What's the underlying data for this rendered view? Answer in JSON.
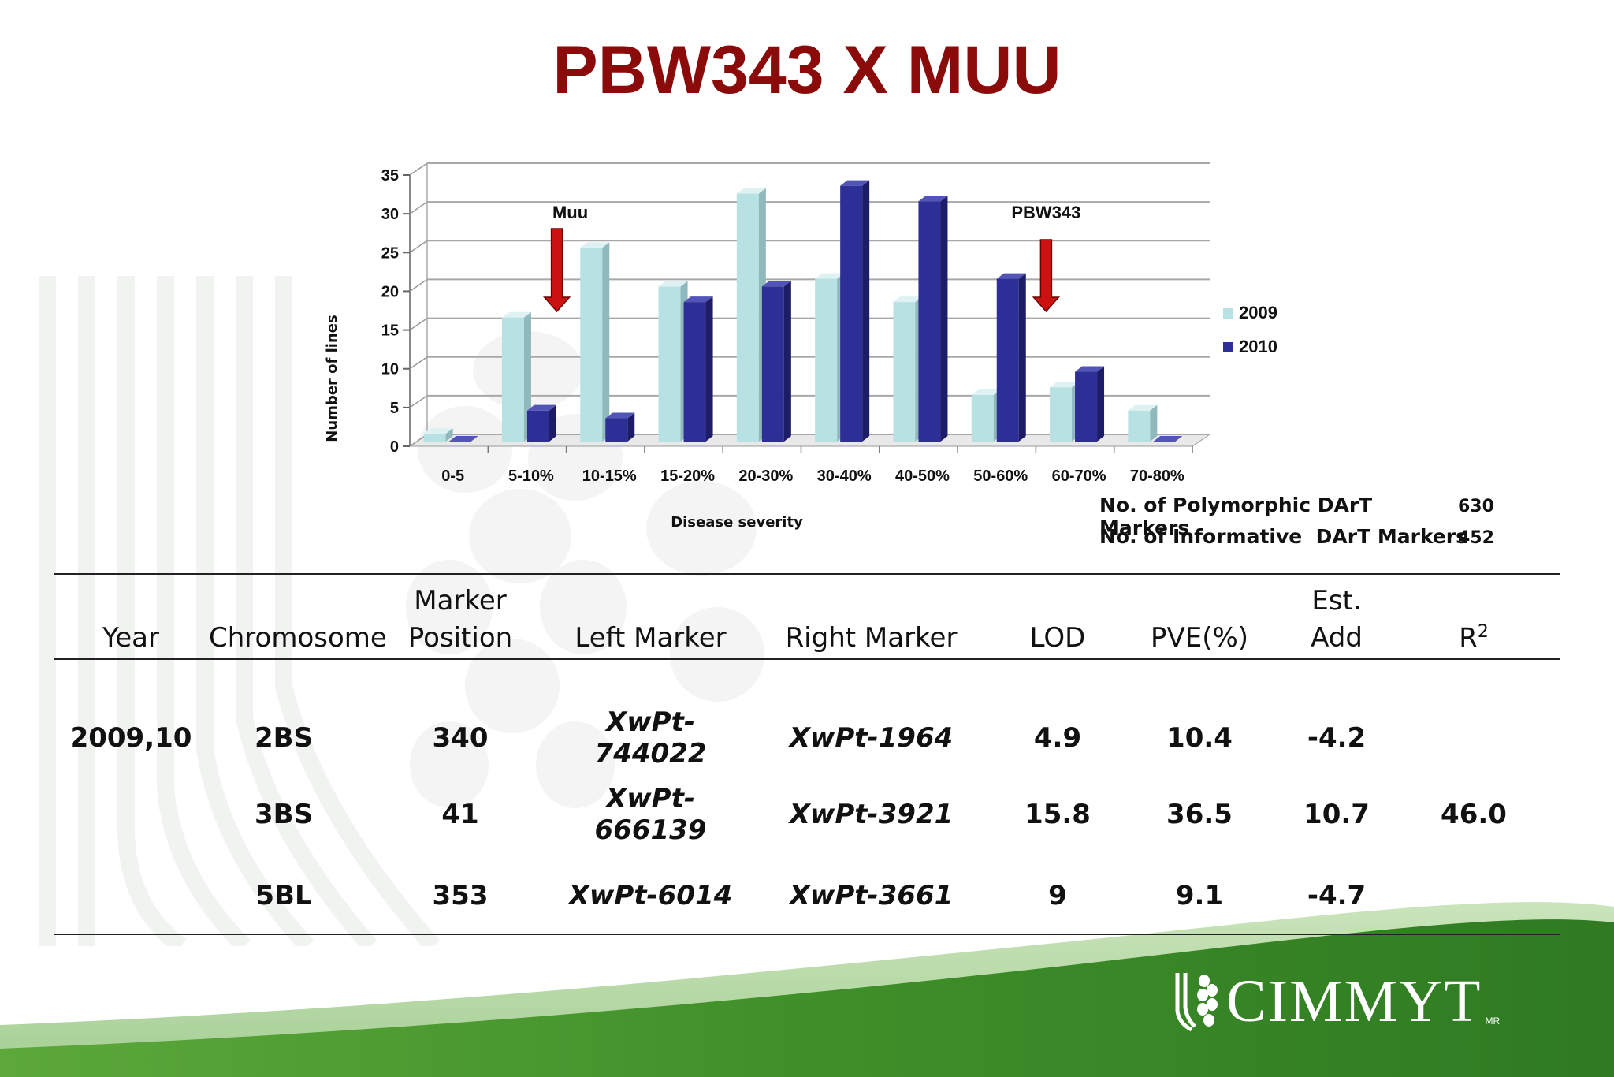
{
  "title": "PBW343 X MUU",
  "chart_data": {
    "type": "bar",
    "title": "",
    "xlabel": "Disease severity",
    "ylabel": "Number of lines",
    "ylim": [
      0,
      35
    ],
    "yticks": [
      0,
      5,
      10,
      15,
      20,
      25,
      30,
      35
    ],
    "grid": true,
    "legend": "right",
    "categories": [
      "0-5",
      "5-10%",
      "10-15%",
      "15-20%",
      "20-30%",
      "30-40%",
      "40-50%",
      "50-60%",
      "60-70%",
      "70-80%"
    ],
    "series": [
      {
        "name": "2009",
        "color": "#b7e1e3",
        "values": [
          1,
          16,
          25,
          20,
          32,
          21,
          18,
          6,
          7,
          4
        ]
      },
      {
        "name": "2010",
        "color": "#2e2f96",
        "values": [
          0,
          4,
          3,
          18,
          20,
          33,
          31,
          21,
          9,
          0
        ]
      }
    ],
    "annotations": [
      {
        "text": "Muu",
        "category": "10-15%"
      },
      {
        "text": "PBW343",
        "category": "60-70%"
      }
    ]
  },
  "markers_info": [
    {
      "label": "No. of Polymorphic DArT Markers",
      "value": "630"
    },
    {
      "label": "No. of Informative  DArT Markers",
      "value": "452"
    }
  ],
  "table": {
    "headers": {
      "year": "Year",
      "chromosome": "Chromosome",
      "marker_line1": "Marker",
      "marker_line2": "Position",
      "left": "Left Marker",
      "right": "Right Marker",
      "lod": "LOD",
      "pve": "PVE(%)",
      "add": "Est. Add",
      "r": "R",
      "r_sup": "2"
    },
    "rows": [
      {
        "year": "2009,10",
        "chromosome": "2BS",
        "position": "340",
        "left": "XwPt-744022",
        "right": "XwPt-1964",
        "lod": "4.9",
        "pve": "10.4",
        "add": "-4.2"
      },
      {
        "year": "",
        "chromosome": "3BS",
        "position": "41",
        "left": "XwPt-666139",
        "right": "XwPt-3921",
        "lod": "15.8",
        "pve": "36.5",
        "add": "10.7"
      },
      {
        "year": "",
        "chromosome": "5BL",
        "position": "353",
        "left": "XwPt-6014",
        "right": "XwPt-3661",
        "lod": "9",
        "pve": "9.1",
        "add": "-4.7"
      }
    ],
    "r2_value": "46.0"
  },
  "logo": {
    "text": "CIMMYT",
    "mark": "MR"
  },
  "colors": {
    "title": "#8b0a0a",
    "arrow": "#cc1111",
    "green": "#4a9a2e"
  }
}
